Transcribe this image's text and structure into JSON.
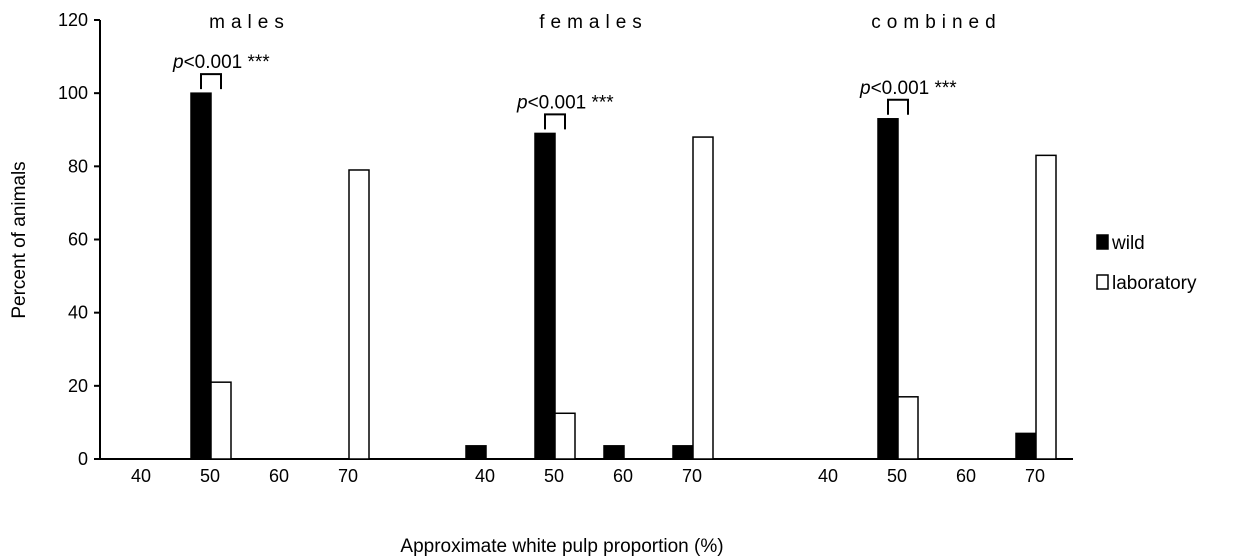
{
  "chart_data": {
    "type": "bar",
    "xlabel": "Approximate white pulp proportion (%)",
    "ylabel": "Percent of animals",
    "ylim": [
      0,
      120
    ],
    "yticks": [
      0,
      20,
      40,
      60,
      80,
      100,
      120
    ],
    "legend_position": "right",
    "series": [
      {
        "name": "wild",
        "color": "#000000"
      },
      {
        "name": "laboratory",
        "color": "#ffffff"
      }
    ],
    "groups": [
      {
        "name": "males",
        "categories": [
          "40",
          "50",
          "60",
          "70"
        ],
        "wild": [
          0,
          100,
          0,
          0
        ],
        "laboratory": [
          0,
          21,
          0,
          79
        ],
        "annotation": {
          "italic": "p",
          "rest": "<0.001 ***",
          "category_index": 1
        }
      },
      {
        "name": "females",
        "categories": [
          "40",
          "50",
          "60",
          "70"
        ],
        "wild": [
          3.6,
          89,
          3.6,
          3.6
        ],
        "laboratory": [
          0,
          12.5,
          0,
          88
        ],
        "annotation": {
          "italic": "p",
          "rest": "<0.001 ***",
          "category_index": 1
        }
      },
      {
        "name": "combined",
        "categories": [
          "40",
          "50",
          "60",
          "70"
        ],
        "wild": [
          0,
          93,
          0,
          7
        ],
        "laboratory": [
          0,
          17,
          0,
          83
        ],
        "annotation": {
          "italic": "p",
          "rest": "<0.001 ***",
          "category_index": 1
        }
      }
    ]
  }
}
